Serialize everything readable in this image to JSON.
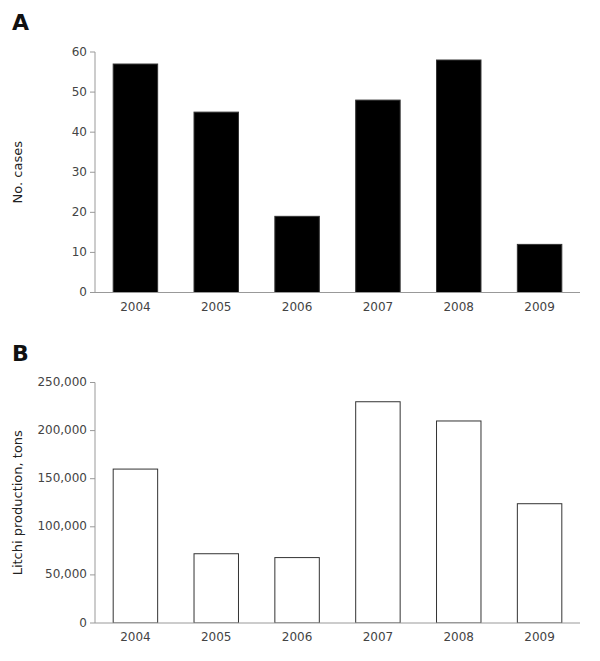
{
  "chart_data": [
    {
      "type": "bar",
      "title": "A",
      "ylabel": "No. cases",
      "categories": [
        "2004",
        "2005",
        "2006",
        "2007",
        "2008",
        "2009"
      ],
      "values": [
        57,
        45,
        19,
        48,
        58,
        12
      ],
      "color": "#000000",
      "ylim": [
        0,
        60
      ],
      "yticks": [
        0,
        10,
        20,
        30,
        40,
        50,
        60
      ],
      "grid": false
    },
    {
      "type": "bar",
      "title": "B",
      "ylabel": "Litchi production, tons",
      "categories": [
        "2004",
        "2005",
        "2006",
        "2007",
        "2008",
        "2009"
      ],
      "values": [
        160000,
        72000,
        68000,
        230000,
        210000,
        124000
      ],
      "color": "#ffffff",
      "ylim": [
        0,
        250000
      ],
      "yticks": [
        0,
        {
          "value": 50000,
          "label": "50,000"
        },
        {
          "value": 100000,
          "label": "100,000"
        },
        {
          "value": 150000,
          "label": "150,000"
        },
        {
          "value": 200000,
          "label": "200,000"
        },
        {
          "value": 250000,
          "label": "250,000"
        }
      ],
      "grid": false
    }
  ]
}
